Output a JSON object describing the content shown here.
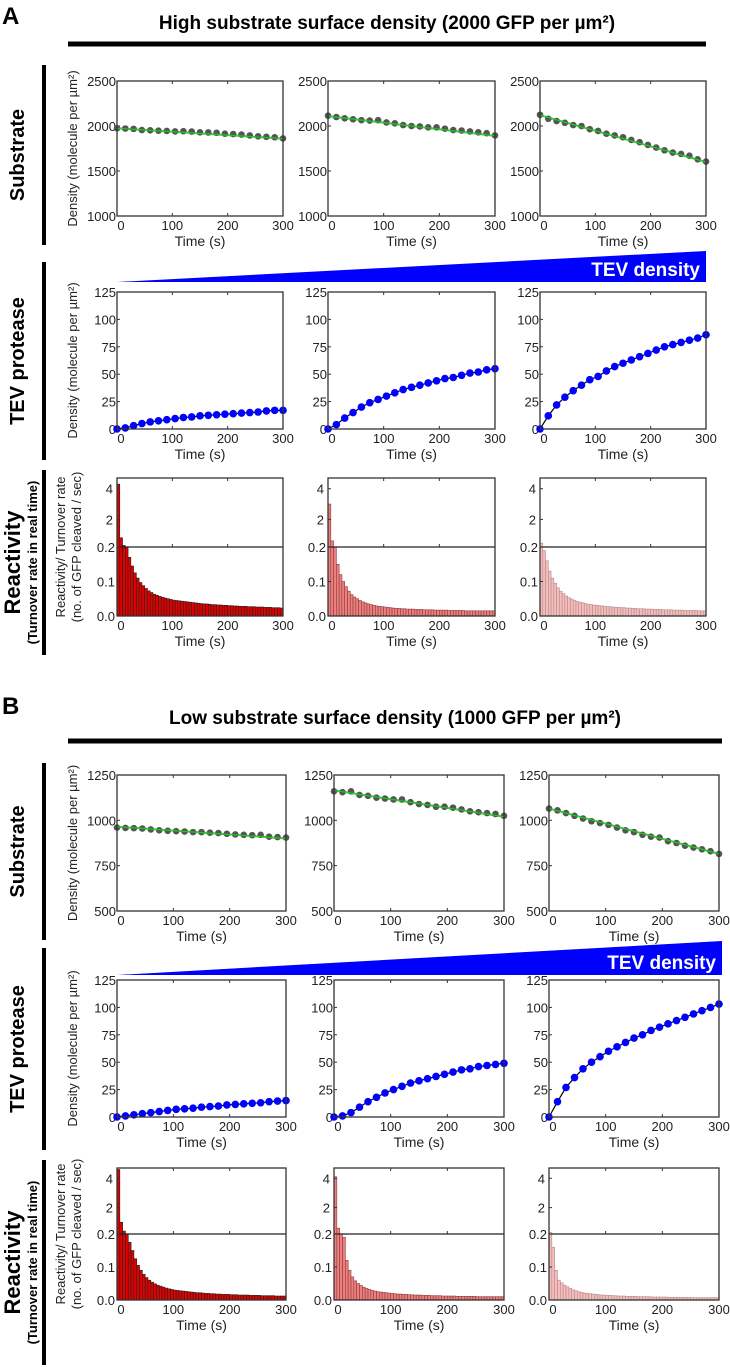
{
  "colors": {
    "substrate_points": "#555555",
    "substrate_fit": "#22dd22",
    "tev_points": "#0000ff",
    "tev_fit": "#000000",
    "wedge": "#0000ff",
    "bars": [
      "#e00000",
      "#ee7f7f",
      "#f5bcbc"
    ]
  },
  "labels": {
    "rows": {
      "substrate": "Substrate",
      "tev": "TEV protease",
      "reactivity": "Reactivity",
      "reactivity_sub": "(Turnover rate in real time)"
    },
    "ylabel_density": "Density (molecule per µm²)",
    "ylabel_react_1": "Reactivity/ Turnover rate",
    "ylabel_react_2": "(no. of GFP cleaved / sec)",
    "xlabel": "Time (s)",
    "wedge": "TEV density"
  },
  "panels": [
    {
      "letter": "A",
      "title": "High substrate surface density (2000 GFP per µm²)",
      "substrate_yticks": [
        "1000",
        "1500",
        "2000",
        "2500"
      ],
      "substrate_ylim": [
        1000,
        2500
      ]
    },
    {
      "letter": "B",
      "title": "Low substrate surface density (1000 GFP per µm²)",
      "substrate_yticks": [
        "500",
        "750",
        "1000",
        "1250"
      ],
      "substrate_ylim": [
        500,
        1250
      ]
    }
  ],
  "xticks": [
    "0",
    "100",
    "200",
    "300"
  ],
  "tev_yticks": [
    "0",
    "25",
    "50",
    "75",
    "100",
    "125"
  ],
  "react_yticks_low": [
    "0.0",
    "0.1",
    "0.2"
  ],
  "react_yticks_high": [
    "2",
    "4"
  ],
  "chart_data": [
    {
      "panel": "A",
      "type": "scatter",
      "row": "substrate",
      "column": 1,
      "x_step": 15,
      "xlim": [
        0,
        300
      ],
      "ylim": [
        1000,
        2500
      ],
      "fit": [
        1975,
        1860
      ],
      "y": [
        1975,
        1972,
        1968,
        1955,
        1952,
        1948,
        1945,
        1940,
        1942,
        1938,
        1930,
        1928,
        1925,
        1915,
        1910,
        1905,
        1895,
        1885,
        1880,
        1875,
        1862
      ]
    },
    {
      "panel": "A",
      "type": "scatter",
      "row": "substrate",
      "column": 2,
      "x_step": 15,
      "xlim": [
        0,
        300
      ],
      "ylim": [
        1000,
        2500
      ],
      "fit": [
        2110,
        1890
      ],
      "y": [
        2115,
        2100,
        2085,
        2075,
        2065,
        2060,
        2065,
        2040,
        2030,
        2010,
        2000,
        1995,
        1985,
        1985,
        1970,
        1955,
        1950,
        1940,
        1930,
        1920,
        1895
      ]
    },
    {
      "panel": "A",
      "type": "scatter",
      "row": "substrate",
      "column": 3,
      "x_step": 15,
      "xlim": [
        0,
        300
      ],
      "ylim": [
        1000,
        2500
      ],
      "fit": [
        2120,
        1600
      ],
      "y": [
        2125,
        2080,
        2055,
        2035,
        2010,
        2000,
        1965,
        1945,
        1915,
        1895,
        1875,
        1845,
        1820,
        1790,
        1760,
        1730,
        1705,
        1690,
        1670,
        1630,
        1605
      ]
    },
    {
      "panel": "A",
      "type": "scatter",
      "row": "tev",
      "column": 1,
      "x_step": 15,
      "xlim": [
        0,
        300
      ],
      "ylim": [
        0,
        125
      ],
      "y": [
        0,
        1,
        3,
        5,
        6.5,
        7.5,
        8.5,
        9.5,
        10.5,
        11,
        12,
        12.5,
        13,
        13.5,
        14,
        14.5,
        15,
        15.5,
        16.5,
        17,
        17
      ]
    },
    {
      "panel": "A",
      "type": "scatter",
      "row": "tev",
      "column": 2,
      "x_step": 15,
      "xlim": [
        0,
        300
      ],
      "ylim": [
        0,
        125
      ],
      "y": [
        0,
        4,
        10,
        15,
        20,
        24,
        27,
        30,
        33,
        36,
        38,
        40,
        42,
        44,
        46,
        47,
        49,
        51,
        52,
        54,
        55
      ]
    },
    {
      "panel": "A",
      "type": "scatter",
      "row": "tev",
      "column": 3,
      "x_step": 15,
      "xlim": [
        0,
        300
      ],
      "ylim": [
        0,
        125
      ],
      "y": [
        0,
        12,
        22,
        29,
        35,
        40,
        45,
        48,
        53,
        57,
        60,
        63,
        66,
        69,
        72,
        75,
        77,
        79,
        81,
        83,
        86
      ]
    },
    {
      "panel": "A",
      "type": "bar",
      "row": "reactivity",
      "column": 1,
      "bin_width": 5,
      "xlim": [
        0,
        300
      ],
      "ylim_low": [
        0,
        0.2
      ],
      "ylim_high": [
        0.2,
        4.7
      ],
      "color_index": 0,
      "values": [
        4.3,
        0.8,
        0.3,
        0.2,
        0.17,
        0.145,
        0.125,
        0.11,
        0.097,
        0.088,
        0.08,
        0.073,
        0.068,
        0.063,
        0.06,
        0.057,
        0.054,
        0.052,
        0.05,
        0.048,
        0.046,
        0.045,
        0.044,
        0.043,
        0.042,
        0.041,
        0.04,
        0.039,
        0.038,
        0.037,
        0.036,
        0.035,
        0.035,
        0.034,
        0.033,
        0.033,
        0.032,
        0.032,
        0.031,
        0.031,
        0.03,
        0.03,
        0.029,
        0.029,
        0.028,
        0.028,
        0.028,
        0.027,
        0.027,
        0.027,
        0.026,
        0.026,
        0.026,
        0.025,
        0.025,
        0.025,
        0.024,
        0.024,
        0.024,
        0.023
      ]
    },
    {
      "panel": "A",
      "type": "bar",
      "row": "reactivity",
      "column": 2,
      "bin_width": 5,
      "xlim": [
        0,
        300
      ],
      "ylim_low": [
        0,
        0.2
      ],
      "ylim_high": [
        0.2,
        4.7
      ],
      "color_index": 1,
      "values": [
        3.0,
        0.6,
        0.2,
        0.15,
        0.12,
        0.1,
        0.085,
        0.072,
        0.062,
        0.055,
        0.05,
        0.045,
        0.041,
        0.038,
        0.035,
        0.033,
        0.031,
        0.029,
        0.028,
        0.027,
        0.026,
        0.025,
        0.024,
        0.023,
        0.022,
        0.022,
        0.021,
        0.021,
        0.02,
        0.02,
        0.02,
        0.019,
        0.019,
        0.019,
        0.018,
        0.018,
        0.018,
        0.018,
        0.017,
        0.017,
        0.017,
        0.017,
        0.017,
        0.016,
        0.016,
        0.016,
        0.016,
        0.016,
        0.016,
        0.015,
        0.015,
        0.015,
        0.015,
        0.015,
        0.015,
        0.015,
        0.015,
        0.015,
        0.015,
        0.015
      ]
    },
    {
      "panel": "A",
      "type": "bar",
      "row": "reactivity",
      "column": 3,
      "bin_width": 5,
      "xlim": [
        0,
        300
      ],
      "ylim_low": [
        0,
        0.2
      ],
      "ylim_high": [
        0.2,
        4.7
      ],
      "color_index": 2,
      "values": [
        0.45,
        0.19,
        0.16,
        0.13,
        0.11,
        0.095,
        0.082,
        0.072,
        0.065,
        0.058,
        0.053,
        0.049,
        0.045,
        0.042,
        0.04,
        0.038,
        0.036,
        0.034,
        0.033,
        0.032,
        0.031,
        0.03,
        0.029,
        0.028,
        0.027,
        0.027,
        0.026,
        0.025,
        0.025,
        0.024,
        0.024,
        0.023,
        0.023,
        0.022,
        0.022,
        0.021,
        0.021,
        0.021,
        0.02,
        0.02,
        0.02,
        0.019,
        0.019,
        0.019,
        0.018,
        0.018,
        0.018,
        0.018,
        0.017,
        0.017,
        0.017,
        0.017,
        0.016,
        0.016,
        0.016,
        0.016,
        0.016,
        0.015,
        0.015,
        0.015
      ]
    },
    {
      "panel": "B",
      "type": "scatter",
      "row": "substrate",
      "column": 1,
      "x_step": 15,
      "xlim": [
        0,
        300
      ],
      "ylim": [
        500,
        1250
      ],
      "fit": [
        965,
        900
      ],
      "y": [
        960,
        958,
        957,
        955,
        950,
        945,
        942,
        940,
        938,
        935,
        935,
        932,
        930,
        926,
        922,
        920,
        918,
        920,
        910,
        908,
        905
      ]
    },
    {
      "panel": "B",
      "type": "scatter",
      "row": "substrate",
      "column": 2,
      "x_step": 15,
      "xlim": [
        0,
        300
      ],
      "ylim": [
        500,
        1250
      ],
      "fit": [
        1165,
        1020
      ],
      "y": [
        1160,
        1155,
        1160,
        1140,
        1135,
        1125,
        1120,
        1115,
        1115,
        1100,
        1090,
        1085,
        1075,
        1075,
        1070,
        1060,
        1050,
        1045,
        1040,
        1035,
        1025
      ]
    },
    {
      "panel": "B",
      "type": "scatter",
      "row": "substrate",
      "column": 3,
      "x_step": 15,
      "xlim": [
        0,
        300
      ],
      "ylim": [
        500,
        1250
      ],
      "fit": [
        1065,
        815
      ],
      "y": [
        1065,
        1055,
        1040,
        1025,
        1010,
        995,
        985,
        975,
        960,
        945,
        935,
        920,
        910,
        905,
        885,
        875,
        860,
        850,
        840,
        830,
        815
      ]
    },
    {
      "panel": "B",
      "type": "scatter",
      "row": "tev",
      "column": 1,
      "x_step": 15,
      "xlim": [
        0,
        300
      ],
      "ylim": [
        0,
        125
      ],
      "y": [
        0,
        1,
        2,
        3,
        4,
        5,
        6,
        7,
        7.5,
        8,
        9,
        9.5,
        10,
        11,
        11.5,
        12,
        12.5,
        13,
        14,
        14.5,
        15
      ]
    },
    {
      "panel": "B",
      "type": "scatter",
      "row": "tev",
      "column": 2,
      "x_step": 15,
      "xlim": [
        0,
        300
      ],
      "ylim": [
        0,
        125
      ],
      "y": [
        0,
        1,
        4,
        9,
        14,
        18,
        22,
        25,
        28,
        31,
        33,
        35,
        37,
        39,
        41,
        43,
        44,
        46,
        47,
        48,
        49
      ]
    },
    {
      "panel": "B",
      "type": "scatter",
      "row": "tev",
      "column": 3,
      "x_step": 15,
      "xlim": [
        0,
        300
      ],
      "ylim": [
        0,
        125
      ],
      "y": [
        0,
        14,
        27,
        36,
        44,
        50,
        55,
        60,
        64,
        68,
        72,
        75,
        79,
        82,
        85,
        88,
        91,
        94,
        97,
        100,
        103
      ]
    },
    {
      "panel": "B",
      "type": "bar",
      "row": "reactivity",
      "column": 1,
      "bin_width": 5,
      "xlim": [
        0,
        300
      ],
      "ylim_low": [
        0,
        0.2
      ],
      "ylim_high": [
        0.2,
        4.7
      ],
      "color_index": 0,
      "values": [
        4.6,
        1.0,
        0.4,
        0.2,
        0.175,
        0.15,
        0.125,
        0.105,
        0.09,
        0.078,
        0.068,
        0.06,
        0.054,
        0.049,
        0.045,
        0.042,
        0.039,
        0.036,
        0.034,
        0.032,
        0.03,
        0.029,
        0.028,
        0.027,
        0.026,
        0.025,
        0.024,
        0.023,
        0.022,
        0.022,
        0.021,
        0.02,
        0.02,
        0.019,
        0.019,
        0.018,
        0.018,
        0.017,
        0.017,
        0.017,
        0.016,
        0.016,
        0.016,
        0.015,
        0.015,
        0.015,
        0.015,
        0.014,
        0.014,
        0.014,
        0.014,
        0.013,
        0.013,
        0.013,
        0.013,
        0.013,
        0.012,
        0.012,
        0.012,
        0.012
      ]
    },
    {
      "panel": "B",
      "type": "bar",
      "row": "reactivity",
      "column": 2,
      "bin_width": 5,
      "xlim": [
        0,
        300
      ],
      "ylim_low": [
        0,
        0.2
      ],
      "ylim_high": [
        0.2,
        4.7
      ],
      "color_index": 1,
      "values": [
        4.1,
        0.6,
        0.2,
        0.19,
        0.12,
        0.09,
        0.07,
        0.058,
        0.05,
        0.044,
        0.039,
        0.035,
        0.032,
        0.029,
        0.027,
        0.025,
        0.024,
        0.023,
        0.022,
        0.021,
        0.02,
        0.019,
        0.018,
        0.018,
        0.017,
        0.017,
        0.016,
        0.016,
        0.015,
        0.015,
        0.015,
        0.014,
        0.014,
        0.014,
        0.013,
        0.013,
        0.013,
        0.013,
        0.012,
        0.012,
        0.012,
        0.012,
        0.012,
        0.011,
        0.011,
        0.011,
        0.011,
        0.011,
        0.011,
        0.011,
        0.01,
        0.01,
        0.01,
        0.01,
        0.01,
        0.01,
        0.01,
        0.01,
        0.01,
        0.01
      ]
    },
    {
      "panel": "B",
      "type": "bar",
      "row": "reactivity",
      "column": 3,
      "bin_width": 5,
      "xlim": [
        0,
        300
      ],
      "ylim_low": [
        0,
        0.2
      ],
      "ylim_high": [
        0.2,
        4.7
      ],
      "color_index": 2,
      "values": [
        0.3,
        0.16,
        0.09,
        0.06,
        0.052,
        0.045,
        0.04,
        0.035,
        0.031,
        0.028,
        0.025,
        0.023,
        0.021,
        0.02,
        0.019,
        0.018,
        0.017,
        0.016,
        0.015,
        0.015,
        0.014,
        0.014,
        0.013,
        0.013,
        0.012,
        0.012,
        0.012,
        0.011,
        0.011,
        0.011,
        0.011,
        0.01,
        0.01,
        0.01,
        0.01,
        0.01,
        0.009,
        0.009,
        0.009,
        0.009,
        0.009,
        0.009,
        0.008,
        0.008,
        0.008,
        0.008,
        0.008,
        0.008,
        0.008,
        0.008,
        0.007,
        0.007,
        0.007,
        0.007,
        0.007,
        0.007,
        0.007,
        0.007,
        0.007,
        0.007
      ]
    }
  ]
}
